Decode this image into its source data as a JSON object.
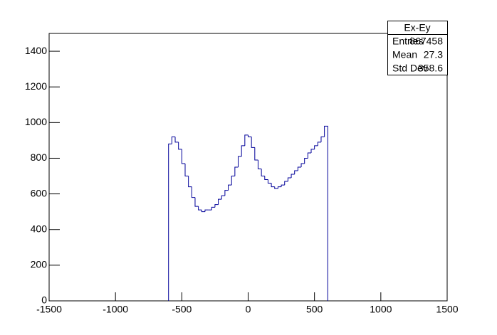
{
  "chart_data": {
    "type": "histogram",
    "bins": [
      -600,
      -575,
      -550,
      -525,
      -500,
      -475,
      -450,
      -425,
      -400,
      -375,
      -350,
      -325,
      -300,
      -275,
      -250,
      -225,
      -200,
      -175,
      -150,
      -125,
      -100,
      -75,
      -50,
      -25,
      0,
      25,
      50,
      75,
      100,
      125,
      150,
      175,
      200,
      225,
      250,
      275,
      300,
      325,
      350,
      375,
      400,
      425,
      450,
      475,
      500,
      525,
      550,
      575,
      600
    ],
    "values": [
      880,
      920,
      890,
      850,
      770,
      700,
      640,
      580,
      530,
      510,
      500,
      510,
      510,
      525,
      540,
      570,
      590,
      620,
      650,
      700,
      750,
      810,
      870,
      930,
      920,
      860,
      790,
      740,
      700,
      680,
      660,
      640,
      630,
      640,
      650,
      670,
      690,
      710,
      730,
      750,
      770,
      800,
      830,
      850,
      870,
      890,
      920,
      980
    ],
    "color": "#000099",
    "xlim": [
      -1500,
      1500
    ],
    "xticks": [
      -1500,
      -1000,
      -500,
      0,
      500,
      1000,
      1500
    ],
    "ylim": [
      0,
      1500
    ],
    "yticks": [
      0,
      200,
      400,
      600,
      800,
      1000,
      1200,
      1400
    ],
    "stats": {
      "title": "Ex-Ey",
      "rows": [
        {
          "label": "Entries",
          "value": 867458
        },
        {
          "label": "Mean",
          "value": 27.3
        },
        {
          "label": "Std Dev",
          "value": 358.6
        }
      ]
    }
  }
}
